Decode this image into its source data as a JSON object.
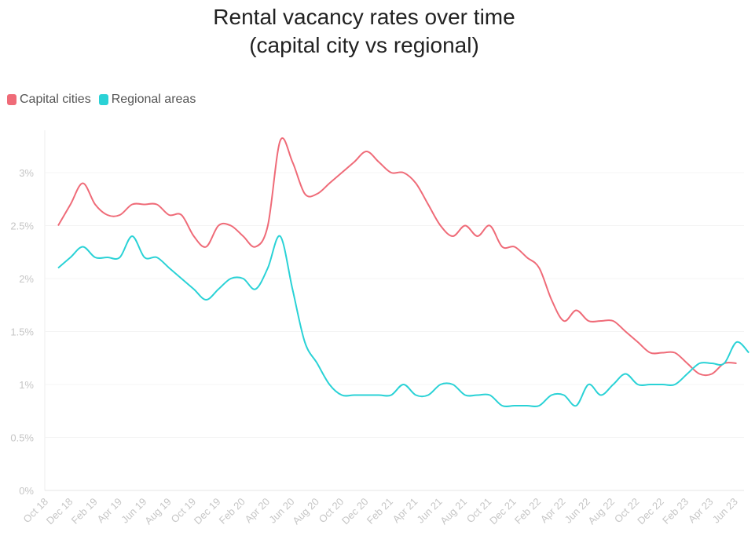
{
  "chart_data": {
    "type": "line",
    "title_lines": [
      "Rental vacancy rates over time",
      "(capital city vs regional)"
    ],
    "xlabel": "",
    "ylabel": "",
    "ylim": [
      0,
      3.4
    ],
    "yticks": [
      0,
      0.5,
      1,
      1.5,
      2,
      2.5,
      3
    ],
    "ytick_labels": [
      "0%",
      "0.5%",
      "1%",
      "1.5%",
      "2%",
      "2.5%",
      "3%"
    ],
    "x_labels": [
      "Oct 18",
      "Dec 18",
      "Feb 19",
      "Apr 19",
      "Jun 19",
      "Aug 19",
      "Oct 19",
      "Dec 19",
      "Feb 20",
      "Apr 20",
      "Jun 20",
      "Aug 20",
      "Oct 20",
      "Dec 20",
      "Feb 21",
      "Apr 21",
      "Jun 21",
      "Aug 21",
      "Oct 21",
      "Dec 21",
      "Feb 22",
      "Apr 22",
      "Jun 22",
      "Aug 22",
      "Oct 22",
      "Dec 22",
      "Feb 23",
      "Apr 23",
      "Jun 23"
    ],
    "x_start": "2018-11",
    "legend_position": "top-left",
    "series": [
      {
        "name": "Capital cities",
        "color": "#ef6b78",
        "values": [
          2.5,
          2.7,
          2.9,
          2.7,
          2.6,
          2.6,
          2.7,
          2.7,
          2.7,
          2.6,
          2.6,
          2.4,
          2.3,
          2.5,
          2.5,
          2.4,
          2.3,
          2.5,
          3.3,
          3.1,
          2.8,
          2.8,
          2.9,
          3.0,
          3.1,
          3.2,
          3.1,
          3.0,
          3.0,
          2.9,
          2.7,
          2.5,
          2.4,
          2.5,
          2.4,
          2.5,
          2.3,
          2.3,
          2.2,
          2.1,
          1.8,
          1.6,
          1.7,
          1.6,
          1.6,
          1.6,
          1.5,
          1.4,
          1.3,
          1.3,
          1.3,
          1.2,
          1.1,
          1.1,
          1.2,
          1.2
        ]
      },
      {
        "name": "Regional areas",
        "color": "#2ad2d6",
        "values": [
          2.1,
          2.2,
          2.3,
          2.2,
          2.2,
          2.2,
          2.4,
          2.2,
          2.2,
          2.1,
          2.0,
          1.9,
          1.8,
          1.9,
          2.0,
          2.0,
          1.9,
          2.1,
          2.4,
          1.9,
          1.4,
          1.2,
          1.0,
          0.9,
          0.9,
          0.9,
          0.9,
          0.9,
          1.0,
          0.9,
          0.9,
          1.0,
          1.0,
          0.9,
          0.9,
          0.9,
          0.8,
          0.8,
          0.8,
          0.8,
          0.9,
          0.9,
          0.8,
          1.0,
          0.9,
          1.0,
          1.1,
          1.0,
          1.0,
          1.0,
          1.0,
          1.1,
          1.2,
          1.2,
          1.2,
          1.4,
          1.3
        ]
      }
    ]
  }
}
